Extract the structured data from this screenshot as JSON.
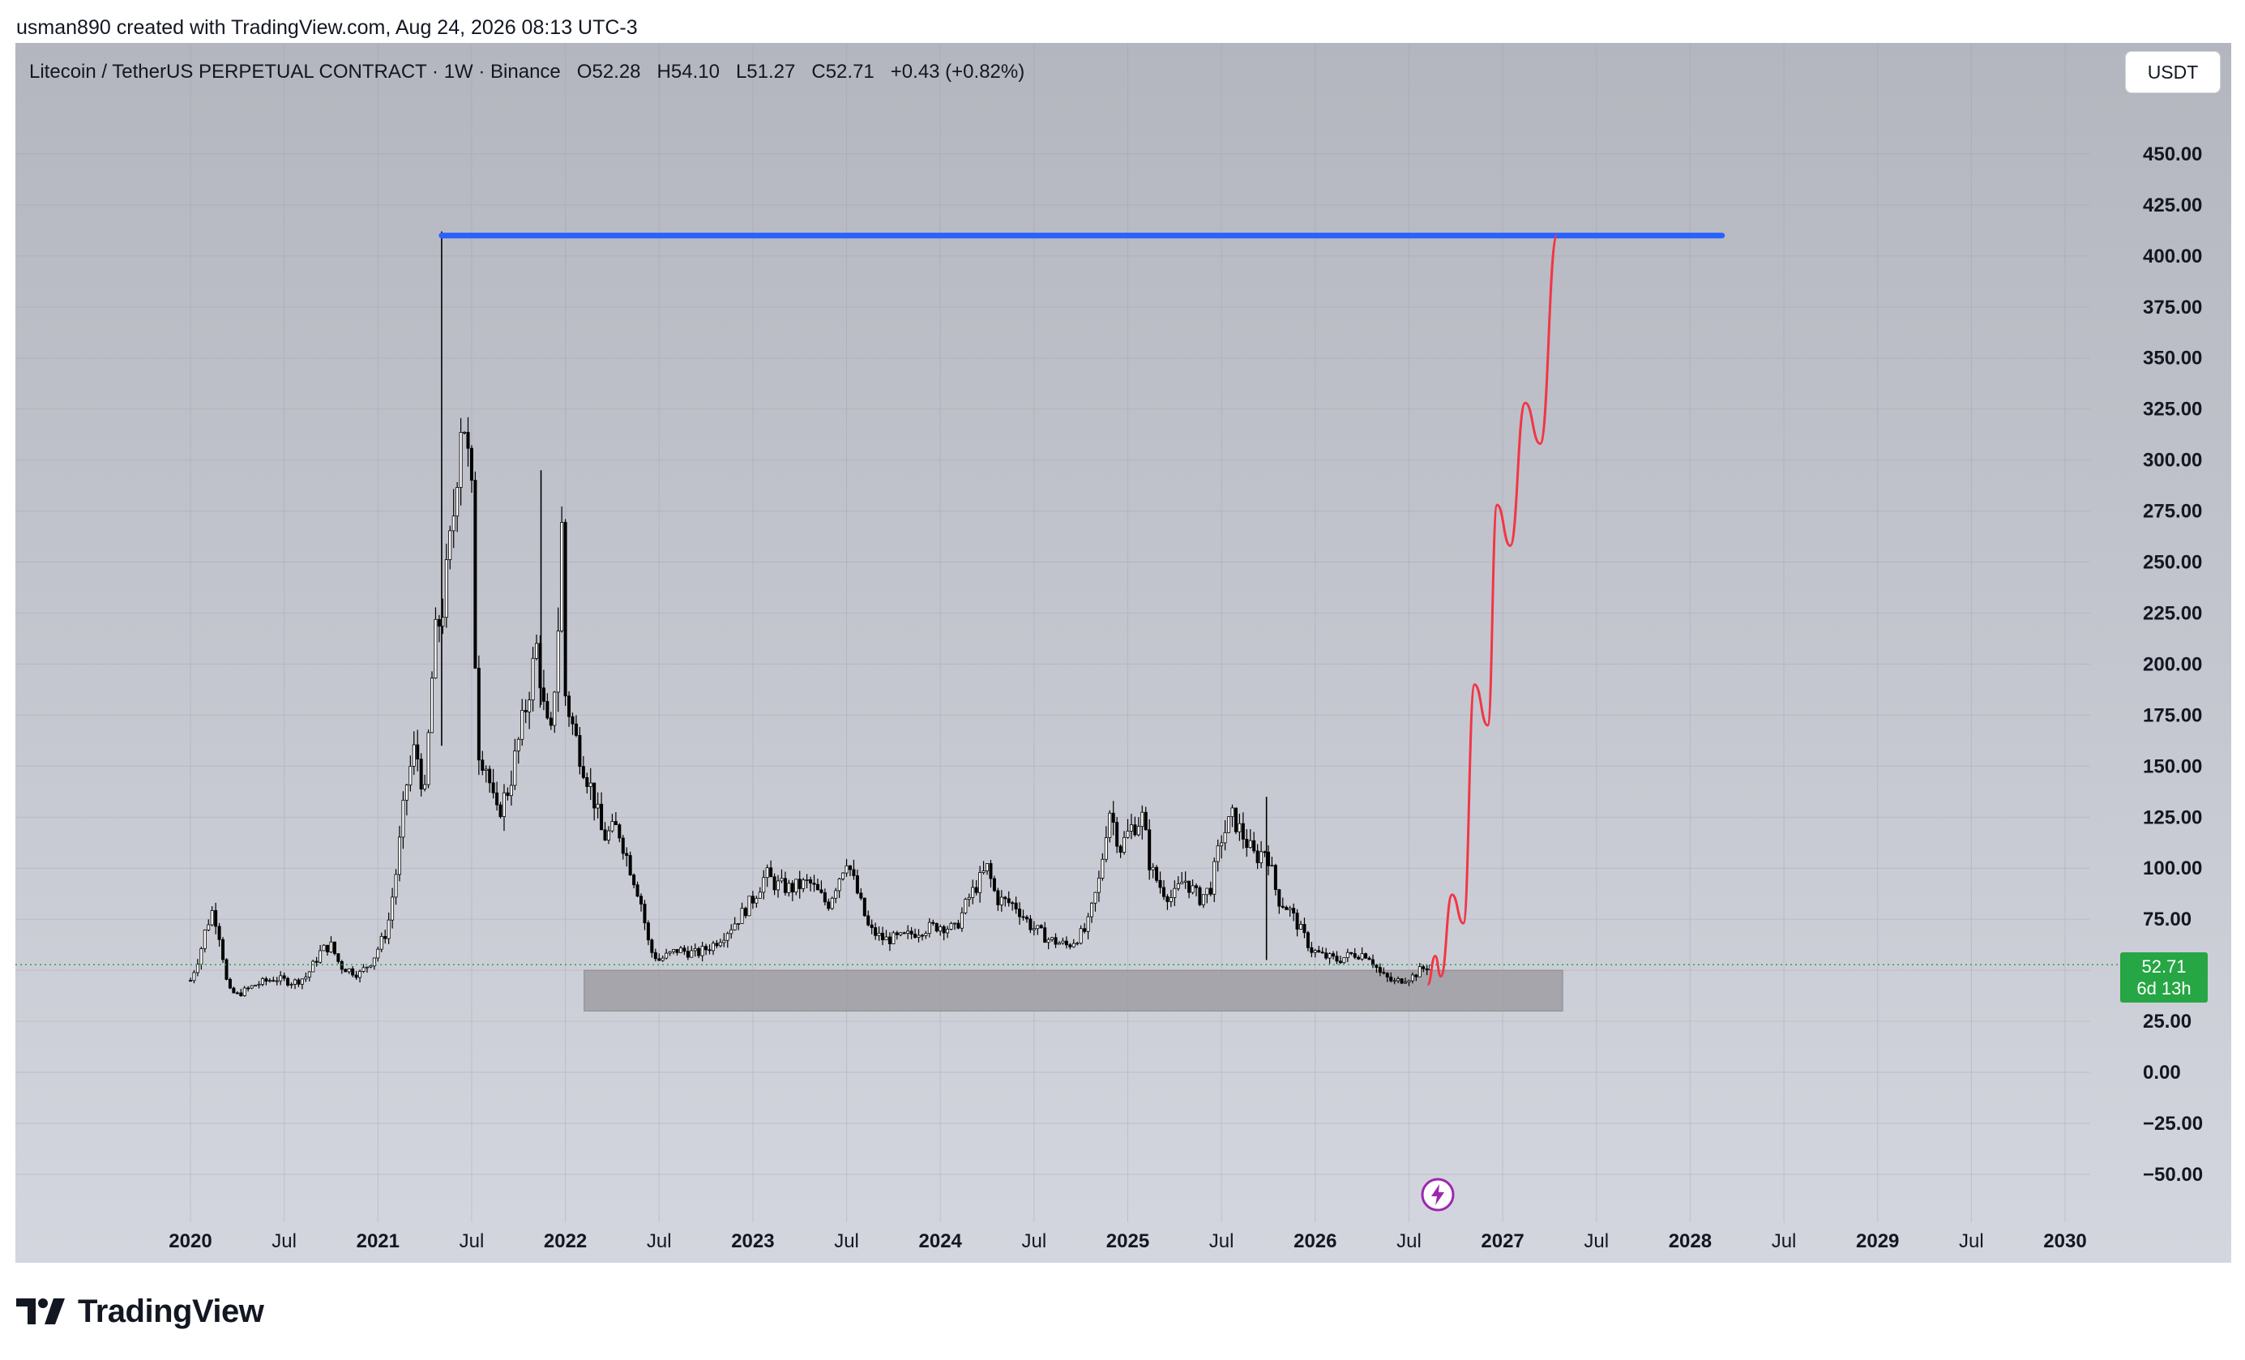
{
  "header": {
    "credit": "usman890 created with TradingView.com, Aug 24, 2026 08:13 UTC-3"
  },
  "legend": {
    "symbol": "Litecoin / TetherUS PERPETUAL CONTRACT · 1W · Binance",
    "open": "O52.28",
    "high": "H54.10",
    "low": "L51.27",
    "close": "C52.71",
    "change": "+0.43 (+0.82%)"
  },
  "currency_button": "USDT",
  "price_badge": {
    "price": "52.71",
    "countdown": "6d 13h"
  },
  "footer": {
    "brand": "TradingView"
  },
  "colors": {
    "background_top": "#b4b6bf",
    "background_bottom": "#d4d6df",
    "blue_line": "#2962ff",
    "red_path": "#f23645",
    "support_zone": "#9e9ea3",
    "price_green": "#26a644",
    "candle": "#000000"
  },
  "chart_data": {
    "type": "candlestick",
    "title": "Litecoin / TetherUS PERPETUAL CONTRACT · 1W · Binance",
    "x_ticks": [
      "2020",
      "Jul",
      "2021",
      "Jul",
      "2022",
      "Jul",
      "2023",
      "Jul",
      "2024",
      "Jul",
      "2025",
      "Jul",
      "2026",
      "Jul",
      "2027",
      "Jul",
      "2028",
      "Jul",
      "2029",
      "Jul",
      "2030"
    ],
    "x_tick_years": [
      2020,
      2020.5,
      2021,
      2021.5,
      2022,
      2022.5,
      2023,
      2023.5,
      2024,
      2024.5,
      2025,
      2025.5,
      2026,
      2026.5,
      2027,
      2027.5,
      2028,
      2028.5,
      2029,
      2029.5,
      2030
    ],
    "y_ticks": [
      "450.00",
      "425.00",
      "400.00",
      "375.00",
      "350.00",
      "325.00",
      "300.00",
      "275.00",
      "250.00",
      "225.00",
      "200.00",
      "175.00",
      "150.00",
      "125.00",
      "100.00",
      "75.00",
      "50.00",
      "25.00",
      "0.00",
      "−25.00",
      "−50.00"
    ],
    "y_tick_values": [
      450,
      425,
      400,
      375,
      350,
      325,
      300,
      275,
      250,
      225,
      200,
      175,
      150,
      125,
      100,
      75,
      50,
      25,
      0,
      -25,
      -50
    ],
    "ylim": [
      -71,
      490
    ],
    "xlim": [
      2019.06,
      2030.86
    ],
    "bold_ticks": [
      "2020",
      "2021",
      "2022",
      "2023",
      "2024",
      "2025",
      "2026",
      "2027",
      "2028",
      "2029",
      "2030"
    ],
    "last_price": 52.71,
    "price_path": [
      [
        2020.0,
        45
      ],
      [
        2020.05,
        58
      ],
      [
        2020.08,
        70
      ],
      [
        2020.12,
        80
      ],
      [
        2020.16,
        65
      ],
      [
        2020.2,
        40
      ],
      [
        2020.25,
        38
      ],
      [
        2020.35,
        43
      ],
      [
        2020.45,
        46
      ],
      [
        2020.55,
        44
      ],
      [
        2020.62,
        47
      ],
      [
        2020.7,
        60
      ],
      [
        2020.75,
        62
      ],
      [
        2020.8,
        52
      ],
      [
        2020.9,
        48
      ],
      [
        2020.97,
        55
      ],
      [
        2021.05,
        70
      ],
      [
        2021.1,
        100
      ],
      [
        2021.15,
        140
      ],
      [
        2021.2,
        160
      ],
      [
        2021.25,
        135
      ],
      [
        2021.3,
        210
      ],
      [
        2021.35,
        230
      ],
      [
        2021.4,
        270
      ],
      [
        2021.45,
        330
      ],
      [
        2021.5,
        280
      ],
      [
        2021.53,
        160
      ],
      [
        2021.58,
        150
      ],
      [
        2021.63,
        125
      ],
      [
        2021.7,
        140
      ],
      [
        2021.78,
        175
      ],
      [
        2021.85,
        210
      ],
      [
        2021.88,
        180
      ],
      [
        2021.92,
        160
      ],
      [
        2021.96,
        215
      ],
      [
        2021.98,
        270
      ],
      [
        2022.0,
        185
      ],
      [
        2022.05,
        165
      ],
      [
        2022.1,
        150
      ],
      [
        2022.15,
        135
      ],
      [
        2022.2,
        115
      ],
      [
        2022.28,
        120
      ],
      [
        2022.33,
        105
      ],
      [
        2022.4,
        85
      ],
      [
        2022.45,
        60
      ],
      [
        2022.5,
        55
      ],
      [
        2022.6,
        60
      ],
      [
        2022.7,
        58
      ],
      [
        2022.78,
        62
      ],
      [
        2022.85,
        68
      ],
      [
        2022.92,
        75
      ],
      [
        2023.0,
        85
      ],
      [
        2023.07,
        97
      ],
      [
        2023.12,
        92
      ],
      [
        2023.2,
        90
      ],
      [
        2023.3,
        93
      ],
      [
        2023.4,
        82
      ],
      [
        2023.5,
        105
      ],
      [
        2023.55,
        90
      ],
      [
        2023.62,
        70
      ],
      [
        2023.7,
        65
      ],
      [
        2023.8,
        66
      ],
      [
        2023.9,
        70
      ],
      [
        2024.0,
        72
      ],
      [
        2024.08,
        70
      ],
      [
        2024.15,
        85
      ],
      [
        2024.25,
        100
      ],
      [
        2024.3,
        85
      ],
      [
        2024.4,
        82
      ],
      [
        2024.48,
        72
      ],
      [
        2024.58,
        65
      ],
      [
        2024.68,
        62
      ],
      [
        2024.78,
        70
      ],
      [
        2024.85,
        95
      ],
      [
        2024.9,
        130
      ],
      [
        2024.96,
        110
      ],
      [
        2025.02,
        120
      ],
      [
        2025.08,
        125
      ],
      [
        2025.12,
        100
      ],
      [
        2025.18,
        90
      ],
      [
        2025.24,
        85
      ],
      [
        2025.3,
        95
      ],
      [
        2025.38,
        85
      ],
      [
        2025.44,
        90
      ],
      [
        2025.5,
        115
      ],
      [
        2025.56,
        125
      ],
      [
        2025.62,
        115
      ],
      [
        2025.68,
        105
      ],
      [
        2025.74,
        110
      ],
      [
        2025.8,
        85
      ],
      [
        2025.86,
        80
      ],
      [
        2025.92,
        70
      ],
      [
        2025.98,
        60
      ],
      [
        2026.04,
        57
      ],
      [
        2026.12,
        55
      ],
      [
        2026.2,
        58
      ],
      [
        2026.28,
        58
      ],
      [
        2026.35,
        48
      ],
      [
        2026.42,
        44
      ],
      [
        2026.48,
        46
      ],
      [
        2026.52,
        47
      ],
      [
        2026.56,
        50
      ],
      [
        2026.62,
        52.71
      ]
    ],
    "spikes": [
      {
        "x": 2021.34,
        "low": 160,
        "high": 412
      },
      {
        "x": 2021.87,
        "low": 180,
        "high": 295
      },
      {
        "x": 2025.74,
        "low": 55,
        "high": 135
      }
    ],
    "blue_line": {
      "x1": 2021.34,
      "x2": 2028.17,
      "y": 410
    },
    "support_zone": {
      "x1": 2022.1,
      "x2": 2027.32,
      "y_top": 50,
      "y_bottom": 30
    },
    "forecast_waypoints": [
      [
        2026.6,
        43
      ],
      [
        2026.64,
        57
      ],
      [
        2026.67,
        47
      ],
      [
        2026.73,
        87
      ],
      [
        2026.79,
        73
      ],
      [
        2026.85,
        190
      ],
      [
        2026.92,
        170
      ],
      [
        2026.97,
        278
      ],
      [
        2027.04,
        258
      ],
      [
        2027.12,
        328
      ],
      [
        2027.2,
        308
      ],
      [
        2027.29,
        410
      ]
    ]
  }
}
